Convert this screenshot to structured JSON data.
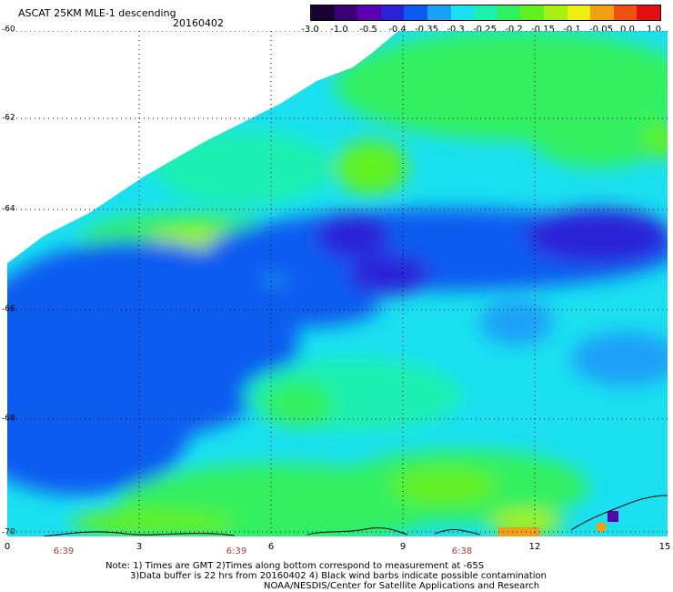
{
  "header": {
    "title": "ASCAT 25KM MLE-1 descending",
    "date": "20160402"
  },
  "colorbar": {
    "labels": [
      "-3.0",
      "-1.0",
      "-0.5",
      "-0.4",
      "-0.35",
      "-0.3",
      "-0.25",
      "-0.2",
      "-0.15",
      "-0.1",
      "-0.05",
      "0.0",
      "1.0"
    ],
    "colors": [
      "#1a0033",
      "#3a0075",
      "#5a00b0",
      "#2a22d8",
      "#0a5cf0",
      "#1aa0f8",
      "#1ae0f0",
      "#1af0b0",
      "#30f060",
      "#60f020",
      "#a8f010",
      "#f0f010",
      "#f0a010",
      "#f05010",
      "#e01010"
    ]
  },
  "map": {
    "y_labels": [
      "-60",
      "-62",
      "-64",
      "-66",
      "-68",
      "-70"
    ],
    "x_labels": [
      "0",
      "3",
      "6",
      "9",
      "12",
      "15"
    ],
    "time_labels": [
      "6:39",
      "6:39",
      "6:38"
    ]
  },
  "footer": {
    "note_line1": "Note: 1) Times are GMT 2)Times along bottom correspond to measurement at -65S",
    "note_line2": "3)Data buffer is 22 hrs from 20160402 4) Black wind barbs indicate possible contamination",
    "credit": "NOAA/NESDIS/Center for Satellite Applications and Research"
  }
}
